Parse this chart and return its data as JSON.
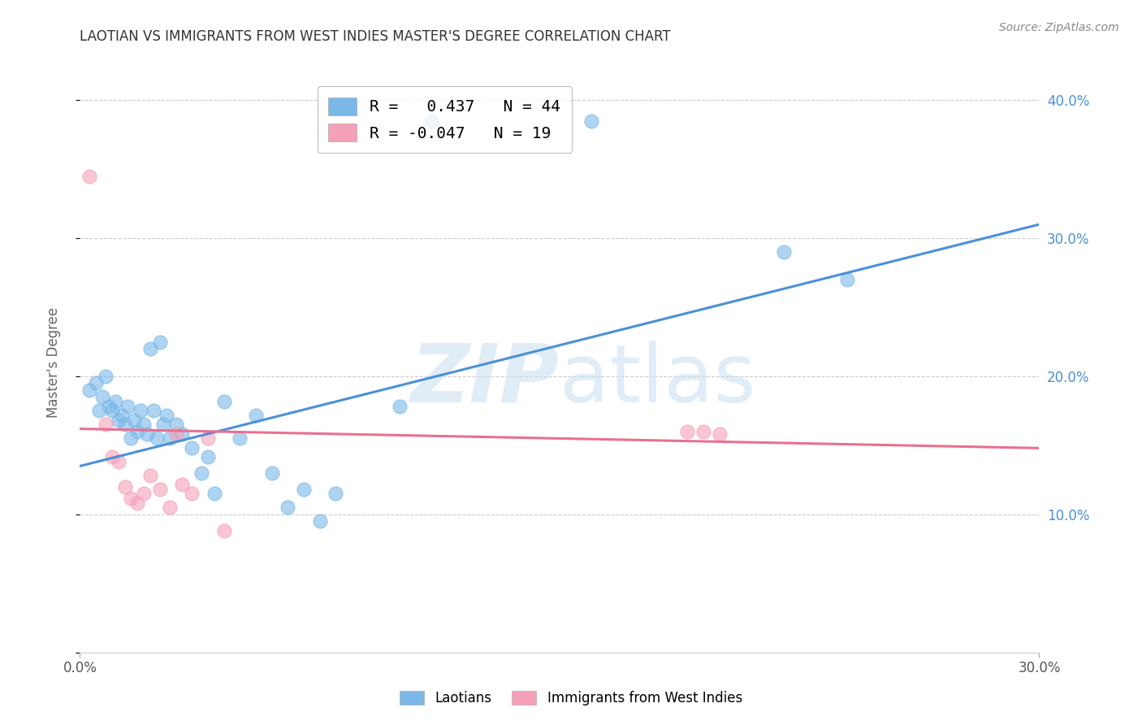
{
  "title": "LAOTIAN VS IMMIGRANTS FROM WEST INDIES MASTER'S DEGREE CORRELATION CHART",
  "source": "Source: ZipAtlas.com",
  "ylabel": "Master's Degree",
  "right_yticklabels": [
    "",
    "10.0%",
    "20.0%",
    "30.0%",
    "40.0%"
  ],
  "xmin": 0.0,
  "xmax": 0.3,
  "ymin": 0.0,
  "ymax": 0.42,
  "legend1_label": "R =   0.437   N = 44",
  "legend2_label": "R = -0.047   N = 19",
  "blue_color": "#7ab8e8",
  "pink_color": "#f5a0b8",
  "line_blue": "#4a90d9",
  "line_pink": "#e87090",
  "watermark_zip": "ZIP",
  "watermark_atlas": "atlas",
  "blue_scatter_x": [
    0.003,
    0.005,
    0.006,
    0.007,
    0.008,
    0.009,
    0.01,
    0.011,
    0.012,
    0.013,
    0.014,
    0.015,
    0.016,
    0.017,
    0.018,
    0.019,
    0.02,
    0.021,
    0.022,
    0.023,
    0.024,
    0.025,
    0.026,
    0.027,
    0.028,
    0.03,
    0.032,
    0.035,
    0.038,
    0.04,
    0.042,
    0.045,
    0.05,
    0.055,
    0.06,
    0.065,
    0.07,
    0.075,
    0.08,
    0.1,
    0.11,
    0.16,
    0.22,
    0.24
  ],
  "blue_scatter_y": [
    0.19,
    0.195,
    0.175,
    0.185,
    0.2,
    0.178,
    0.175,
    0.182,
    0.168,
    0.172,
    0.165,
    0.178,
    0.155,
    0.168,
    0.16,
    0.175,
    0.165,
    0.158,
    0.22,
    0.175,
    0.155,
    0.225,
    0.165,
    0.172,
    0.155,
    0.165,
    0.158,
    0.148,
    0.13,
    0.142,
    0.115,
    0.182,
    0.155,
    0.172,
    0.13,
    0.105,
    0.118,
    0.095,
    0.115,
    0.178,
    0.385,
    0.385,
    0.29,
    0.27
  ],
  "pink_scatter_x": [
    0.003,
    0.008,
    0.01,
    0.012,
    0.014,
    0.016,
    0.018,
    0.02,
    0.022,
    0.025,
    0.028,
    0.03,
    0.032,
    0.035,
    0.04,
    0.045,
    0.19,
    0.195,
    0.2
  ],
  "pink_scatter_y": [
    0.345,
    0.165,
    0.142,
    0.138,
    0.12,
    0.112,
    0.108,
    0.115,
    0.128,
    0.118,
    0.105,
    0.158,
    0.122,
    0.115,
    0.155,
    0.088,
    0.16,
    0.16,
    0.158
  ],
  "blue_line_x": [
    0.0,
    0.3
  ],
  "blue_line_y": [
    0.135,
    0.31
  ],
  "pink_line_x": [
    0.0,
    0.3
  ],
  "pink_line_y": [
    0.162,
    0.148
  ],
  "grid_color": "#cccccc",
  "bg_color": "#ffffff"
}
